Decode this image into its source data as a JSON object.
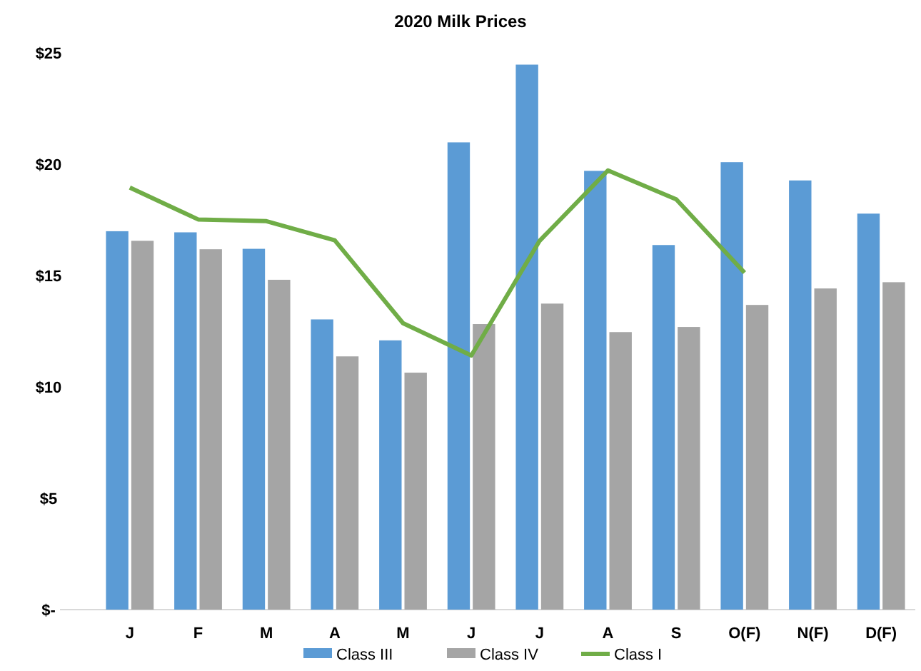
{
  "chart_data": {
    "type": "bar",
    "title": "2020 Milk Prices",
    "categories": [
      "J",
      "F",
      "M",
      "A",
      "M",
      "J",
      "J",
      "A",
      "S",
      "O(F)",
      "N(F)",
      "D(F)"
    ],
    "series": [
      {
        "name": "Class III",
        "color": "#5b9bd5",
        "values": [
          16.99,
          16.94,
          16.2,
          13.03,
          12.09,
          20.98,
          24.47,
          19.7,
          16.37,
          20.09,
          19.27,
          17.78
        ]
      },
      {
        "name": "Class IV",
        "color": "#a5a5a5",
        "values": [
          16.56,
          16.18,
          14.81,
          11.37,
          10.64,
          12.82,
          13.74,
          12.46,
          12.69,
          13.68,
          14.42,
          14.7
        ]
      },
      {
        "name": "Class I",
        "type": "line",
        "color": "#70ad47",
        "values": [
          18.95,
          17.52,
          17.44,
          16.58,
          12.86,
          11.41,
          16.56,
          19.72,
          18.42,
          15.13,
          null,
          null
        ]
      }
    ],
    "ylim": [
      0,
      25
    ],
    "yticks": [
      {
        "value": 0,
        "label": "$-"
      },
      {
        "value": 5,
        "label": "$5"
      },
      {
        "value": 10,
        "label": "$10"
      },
      {
        "value": 15,
        "label": "$15"
      },
      {
        "value": 20,
        "label": "$20"
      },
      {
        "value": 25,
        "label": "$25"
      }
    ],
    "grid": false,
    "legend": "bottom",
    "marker": "none"
  }
}
